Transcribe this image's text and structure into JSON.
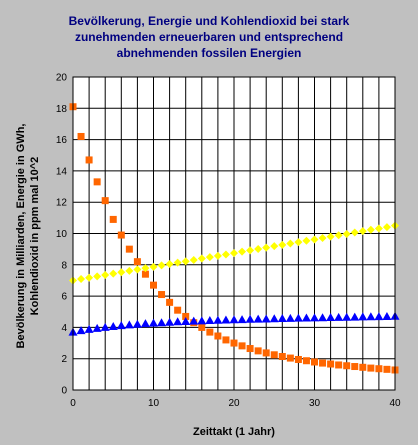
{
  "chart_data": {
    "type": "scatter",
    "title_lines": [
      "Bevölkerung, Energie und Kohlendioxid bei stark",
      "zunehmenden erneuerbaren und entsprechend",
      "abnehmenden fossilen Energien"
    ],
    "xlabel": "Zeittakt (1 Jahr)",
    "ylabel_lines": [
      "Bevölkerung in Milliarden, Energie in GWh,",
      "Kohlendioxid in ppm mal 10^2"
    ],
    "xlim": [
      0,
      40
    ],
    "ylim": [
      0,
      20
    ],
    "x_ticks": [
      0,
      10,
      20,
      30,
      40
    ],
    "y_ticks": [
      0,
      2,
      4,
      6,
      8,
      10,
      12,
      14,
      16,
      18,
      20
    ],
    "x_grid_step": 2,
    "grid": true,
    "colors": {
      "background": "#c0c0c0",
      "plot_area": "#ffffff",
      "grid": "#000000",
      "title": "#000080"
    },
    "series": [
      {
        "marker": "square",
        "color": "#ff6600",
        "points": [
          [
            0,
            18.1
          ],
          [
            1,
            16.2
          ],
          [
            2,
            14.7
          ],
          [
            3,
            13.3
          ],
          [
            4,
            12.1
          ],
          [
            5,
            10.9
          ],
          [
            6,
            9.9
          ],
          [
            7,
            9.0
          ],
          [
            8,
            8.2
          ],
          [
            9,
            7.4
          ],
          [
            10,
            6.7
          ],
          [
            11,
            6.1
          ],
          [
            12,
            5.6
          ],
          [
            13,
            5.1
          ],
          [
            14,
            4.7
          ],
          [
            15,
            4.3
          ],
          [
            16,
            4.0
          ],
          [
            17,
            3.7
          ],
          [
            18,
            3.45
          ],
          [
            19,
            3.2
          ],
          [
            20,
            3.0
          ],
          [
            21,
            2.82
          ],
          [
            22,
            2.65
          ],
          [
            23,
            2.5
          ],
          [
            24,
            2.37
          ],
          [
            25,
            2.25
          ],
          [
            26,
            2.14
          ],
          [
            27,
            2.04
          ],
          [
            28,
            1.95
          ],
          [
            29,
            1.87
          ],
          [
            30,
            1.79
          ],
          [
            31,
            1.72
          ],
          [
            32,
            1.66
          ],
          [
            33,
            1.6
          ],
          [
            34,
            1.55
          ],
          [
            35,
            1.5
          ],
          [
            36,
            1.45
          ],
          [
            37,
            1.4
          ],
          [
            38,
            1.36
          ],
          [
            39,
            1.32
          ],
          [
            40,
            1.28
          ]
        ]
      },
      {
        "marker": "diamond",
        "color": "#ffff00",
        "points": [
          [
            0,
            7.0
          ],
          [
            1,
            7.09
          ],
          [
            2,
            7.17
          ],
          [
            3,
            7.26
          ],
          [
            4,
            7.35
          ],
          [
            5,
            7.44
          ],
          [
            6,
            7.52
          ],
          [
            7,
            7.61
          ],
          [
            8,
            7.7
          ],
          [
            9,
            7.79
          ],
          [
            10,
            7.87
          ],
          [
            11,
            7.96
          ],
          [
            12,
            8.05
          ],
          [
            13,
            8.14
          ],
          [
            14,
            8.22
          ],
          [
            15,
            8.31
          ],
          [
            16,
            8.4
          ],
          [
            17,
            8.49
          ],
          [
            18,
            8.57
          ],
          [
            19,
            8.66
          ],
          [
            20,
            8.75
          ],
          [
            21,
            8.84
          ],
          [
            22,
            8.92
          ],
          [
            23,
            9.01
          ],
          [
            24,
            9.1
          ],
          [
            25,
            9.19
          ],
          [
            26,
            9.27
          ],
          [
            27,
            9.36
          ],
          [
            28,
            9.45
          ],
          [
            29,
            9.54
          ],
          [
            30,
            9.62
          ],
          [
            31,
            9.71
          ],
          [
            32,
            9.8
          ],
          [
            33,
            9.89
          ],
          [
            34,
            9.97
          ],
          [
            35,
            10.06
          ],
          [
            36,
            10.15
          ],
          [
            37,
            10.24
          ],
          [
            38,
            10.32
          ],
          [
            39,
            10.41
          ],
          [
            40,
            10.5
          ]
        ]
      },
      {
        "marker": "triangle",
        "color": "#0000ff",
        "points": [
          [
            0,
            3.7
          ],
          [
            1,
            3.79
          ],
          [
            2,
            3.87
          ],
          [
            3,
            3.94
          ],
          [
            4,
            4.0
          ],
          [
            5,
            4.06
          ],
          [
            6,
            4.11
          ],
          [
            7,
            4.16
          ],
          [
            8,
            4.2
          ],
          [
            9,
            4.24
          ],
          [
            10,
            4.27
          ],
          [
            11,
            4.3
          ],
          [
            12,
            4.33
          ],
          [
            13,
            4.36
          ],
          [
            14,
            4.38
          ],
          [
            15,
            4.4
          ],
          [
            16,
            4.42
          ],
          [
            17,
            4.44
          ],
          [
            18,
            4.46
          ],
          [
            19,
            4.47
          ],
          [
            20,
            4.49
          ],
          [
            21,
            4.5
          ],
          [
            22,
            4.52
          ],
          [
            23,
            4.53
          ],
          [
            24,
            4.54
          ],
          [
            25,
            4.55
          ],
          [
            26,
            4.57
          ],
          [
            27,
            4.58
          ],
          [
            28,
            4.59
          ],
          [
            29,
            4.6
          ],
          [
            30,
            4.61
          ],
          [
            31,
            4.62
          ],
          [
            32,
            4.63
          ],
          [
            33,
            4.64
          ],
          [
            34,
            4.65
          ],
          [
            35,
            4.66
          ],
          [
            36,
            4.67
          ],
          [
            37,
            4.68
          ],
          [
            38,
            4.69
          ],
          [
            39,
            4.7
          ],
          [
            40,
            4.71
          ]
        ]
      }
    ]
  }
}
